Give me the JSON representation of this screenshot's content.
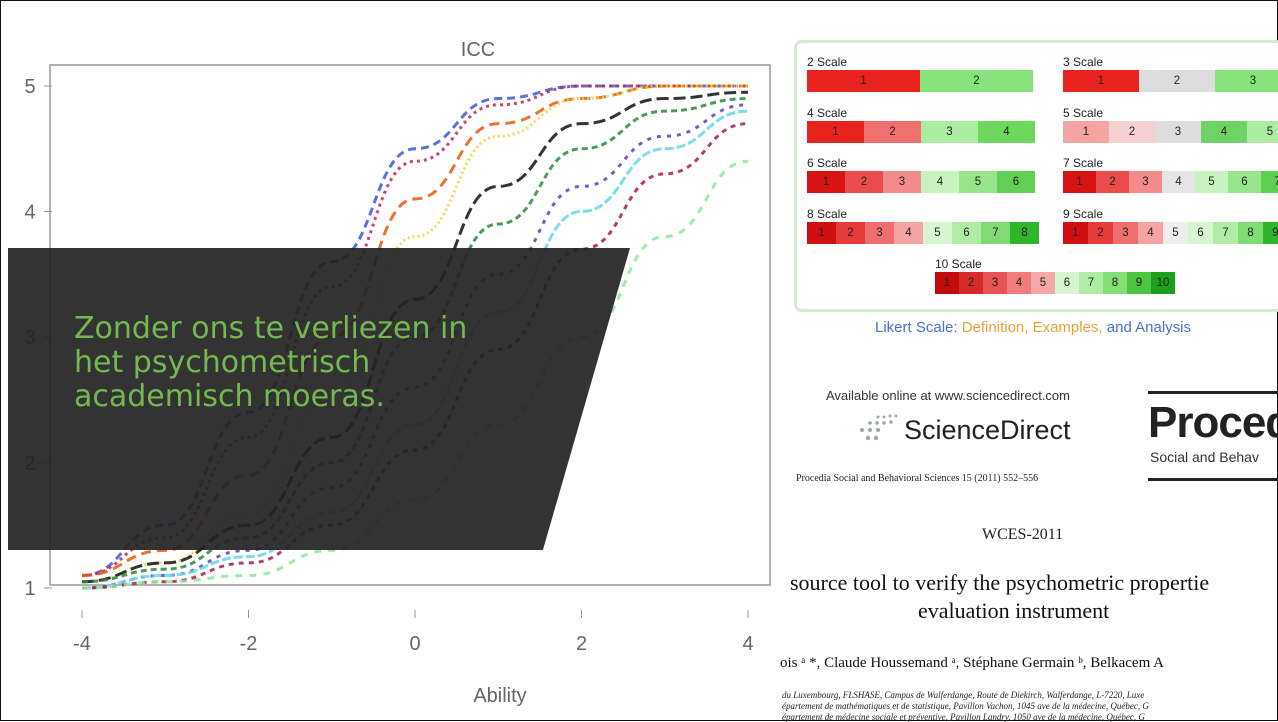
{
  "chart": {
    "title": "ICC",
    "xlabel": "Ability",
    "x_ticks": [
      "-4",
      "-2",
      "0",
      "2",
      "4"
    ],
    "y_ticks": [
      "1",
      "2",
      "3",
      "4",
      "5"
    ]
  },
  "chart_data": {
    "type": "line",
    "title": "ICC",
    "xlabel": "Ability",
    "ylabel": "",
    "xlim": [
      -4,
      4
    ],
    "ylim": [
      1,
      5
    ],
    "grid": false,
    "series": [
      {
        "color": "#3b5bdb",
        "x": [
          -4,
          -3,
          -2,
          -1,
          0,
          1,
          2,
          3,
          4
        ],
        "values": [
          1.1,
          1.5,
          2.4,
          3.6,
          4.5,
          4.9,
          5.0,
          5.0,
          5.0
        ]
      },
      {
        "color": "#c2255c",
        "x": [
          -4,
          -3,
          -2,
          -1,
          0,
          1,
          2,
          3,
          4
        ],
        "values": [
          1.1,
          1.4,
          2.2,
          3.4,
          4.4,
          4.85,
          5.0,
          5.0,
          5.0
        ]
      },
      {
        "color": "#e8590c",
        "x": [
          -4,
          -3,
          -2,
          -1,
          0,
          1,
          2,
          3,
          4
        ],
        "values": [
          1.1,
          1.3,
          1.9,
          3.0,
          4.1,
          4.7,
          4.9,
          5.0,
          5.0
        ]
      },
      {
        "color": "#f2d13a",
        "x": [
          -4,
          -3,
          -2,
          -1,
          0,
          1,
          2,
          3,
          4
        ],
        "values": [
          1.05,
          1.2,
          1.6,
          2.6,
          3.8,
          4.6,
          4.9,
          5.0,
          5.0
        ]
      },
      {
        "color": "#111111",
        "x": [
          -4,
          -3,
          -2,
          -1,
          0,
          1,
          2,
          3,
          4
        ],
        "values": [
          1.05,
          1.2,
          1.5,
          2.2,
          3.3,
          4.2,
          4.7,
          4.9,
          4.95
        ]
      },
      {
        "color": "#2b8a3e",
        "x": [
          -4,
          -3,
          -2,
          -1,
          0,
          1,
          2,
          3,
          4
        ],
        "values": [
          1.05,
          1.15,
          1.4,
          2.0,
          3.0,
          3.9,
          4.5,
          4.8,
          4.9
        ]
      },
      {
        "color": "#5f3dc4",
        "x": [
          -4,
          -3,
          -2,
          -1,
          0,
          1,
          2,
          3,
          4
        ],
        "values": [
          1.0,
          1.1,
          1.3,
          1.8,
          2.6,
          3.5,
          4.2,
          4.6,
          4.85
        ]
      },
      {
        "color": "#66d9e8",
        "x": [
          -4,
          -3,
          -2,
          -1,
          0,
          1,
          2,
          3,
          4
        ],
        "values": [
          1.0,
          1.1,
          1.25,
          1.6,
          2.3,
          3.2,
          4.0,
          4.5,
          4.8
        ]
      },
      {
        "color": "#a61e4d",
        "x": [
          -4,
          -3,
          -2,
          -1,
          0,
          1,
          2,
          3,
          4
        ],
        "values": [
          1.0,
          1.05,
          1.2,
          1.5,
          2.1,
          2.9,
          3.7,
          4.3,
          4.7
        ]
      },
      {
        "color": "#8ce99a",
        "x": [
          -4,
          -3,
          -2,
          -1,
          0,
          1,
          2,
          3,
          4
        ],
        "values": [
          1.0,
          1.05,
          1.1,
          1.3,
          1.7,
          2.3,
          3.0,
          3.8,
          4.4
        ]
      }
    ]
  },
  "banner": {
    "lines": [
      "Zonder ons te verliezen in",
      "het psychometrisch",
      "academisch moeras."
    ]
  },
  "likert": {
    "scales": [
      {
        "title": "2 Scale",
        "segments": [
          {
            "label": "1",
            "color": "#e8231f"
          },
          {
            "label": "2",
            "color": "#86e27a"
          }
        ]
      },
      {
        "title": "3 Scale",
        "segments": [
          {
            "label": "1",
            "color": "#e8231f"
          },
          {
            "label": "2",
            "color": "#dddddd"
          },
          {
            "label": "3",
            "color": "#86e27a"
          }
        ]
      },
      {
        "title": "4 Scale",
        "segments": [
          {
            "label": "1",
            "color": "#e8231f"
          },
          {
            "label": "2",
            "color": "#f07070"
          },
          {
            "label": "3",
            "color": "#a9eda0"
          },
          {
            "label": "4",
            "color": "#6dd75e"
          }
        ]
      },
      {
        "title": "5 Scale",
        "segments": [
          {
            "label": "1",
            "color": "#f5a3a3"
          },
          {
            "label": "2",
            "color": "#f4d0d0"
          },
          {
            "label": "3",
            "color": "#dddddd"
          },
          {
            "label": "4",
            "color": "#6fd265"
          },
          {
            "label": "5",
            "color": "#a9eda0"
          }
        ]
      },
      {
        "title": "6 Scale",
        "segments": [
          {
            "label": "1",
            "color": "#d81414"
          },
          {
            "label": "2",
            "color": "#eb4d4d"
          },
          {
            "label": "3",
            "color": "#f28c8c"
          },
          {
            "label": "4",
            "color": "#c8f2c0"
          },
          {
            "label": "5",
            "color": "#97e48b"
          },
          {
            "label": "6",
            "color": "#62cf55"
          }
        ]
      },
      {
        "title": "7 Scale",
        "segments": [
          {
            "label": "1",
            "color": "#d81414"
          },
          {
            "label": "2",
            "color": "#eb4d4d"
          },
          {
            "label": "3",
            "color": "#f28c8c"
          },
          {
            "label": "4",
            "color": "#e5e5e5"
          },
          {
            "label": "5",
            "color": "#c8f2c0"
          },
          {
            "label": "6",
            "color": "#97e48b"
          },
          {
            "label": "7",
            "color": "#5fcf52"
          }
        ]
      },
      {
        "title": "8 Scale",
        "segments": [
          {
            "label": "1",
            "color": "#d10f0f"
          },
          {
            "label": "2",
            "color": "#e63b3b"
          },
          {
            "label": "3",
            "color": "#f06e6e"
          },
          {
            "label": "4",
            "color": "#f5a3a3"
          },
          {
            "label": "5",
            "color": "#d8f5d2"
          },
          {
            "label": "6",
            "color": "#b1eca6"
          },
          {
            "label": "7",
            "color": "#7fdb72"
          },
          {
            "label": "8",
            "color": "#2fb52a"
          }
        ]
      },
      {
        "title": "9 Scale",
        "segments": [
          {
            "label": "1",
            "color": "#d10f0f"
          },
          {
            "label": "2",
            "color": "#e63b3b"
          },
          {
            "label": "3",
            "color": "#f06e6e"
          },
          {
            "label": "4",
            "color": "#f5a3a3"
          },
          {
            "label": "5",
            "color": "#eeeeee"
          },
          {
            "label": "6",
            "color": "#d8f5d2"
          },
          {
            "label": "7",
            "color": "#b1eca6"
          },
          {
            "label": "8",
            "color": "#7fdb72"
          },
          {
            "label": "9",
            "color": "#2fb52a"
          }
        ]
      },
      {
        "title": "10 Scale",
        "segments": [
          {
            "label": "1",
            "color": "#c40a0a"
          },
          {
            "label": "2",
            "color": "#d92a2a"
          },
          {
            "label": "3",
            "color": "#e85353"
          },
          {
            "label": "4",
            "color": "#f07c7c"
          },
          {
            "label": "5",
            "color": "#f6a8a8"
          },
          {
            "label": "6",
            "color": "#d8f5d2"
          },
          {
            "label": "7",
            "color": "#b1eca6"
          },
          {
            "label": "8",
            "color": "#84de77"
          },
          {
            "label": "9",
            "color": "#4cc640"
          },
          {
            "label": "10",
            "color": "#1ea11a"
          }
        ]
      }
    ],
    "caption_part1": "Likert Scale: ",
    "caption_part2": "Definition, Examples,",
    "caption_part3": " and Analysis"
  },
  "paper": {
    "available_online": "Available online at www.sciencedirect.com",
    "sciencedirect": "ScienceDirect",
    "procedia": "Proced",
    "procedia_sub": "Social and Behav",
    "citation": "Procedia Social and Behavioral Sciences 15 (2011) 552–556",
    "conference": "WCES-2011",
    "title_line1": "source tool to verify the psychometric propertie",
    "title_line2": "evaluation instrument",
    "authors": "ois ᵃ *, Claude Houssemand ᵃ, Stéphane Germain ᵇ, Belkacem A",
    "affiliations": [
      "du Luxembourg, FLSHASE, Campus de Walferdange, Route de Diekirch, Walferdange, L-7220, Luxe",
      "épartement de mathématiques et de statistique, Pavillon Vachon, 1045 ave de la médecine, Québec, G",
      "épartement de médecine sociale et préventive, Pavillon Landry, 1050 ave de la médecine, Québec, G"
    ]
  }
}
